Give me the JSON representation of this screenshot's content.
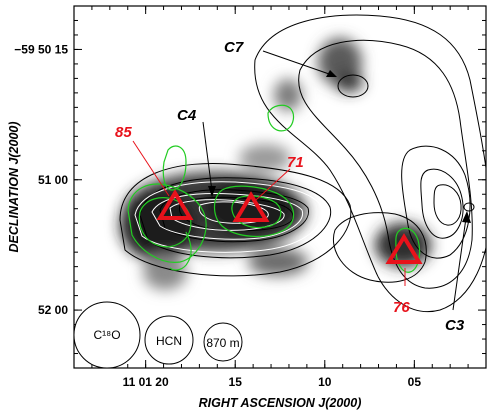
{
  "chart_data": {
    "type": "contour",
    "xlabel": "RIGHT ASCENSION J(2000)",
    "ylabel": "DECLINATION J(2000)",
    "x_ticks": [
      {
        "value": 20,
        "label": "11 01 20"
      },
      {
        "value": 15,
        "label": "15"
      },
      {
        "value": 10,
        "label": "10"
      },
      {
        "value": 5,
        "label": "05"
      }
    ],
    "y_ticks": [
      {
        "value": 15,
        "label": "−59 50 15"
      },
      {
        "value": 60,
        "label": "51 00"
      },
      {
        "value": 105,
        "label": "52 00"
      }
    ],
    "ra_seconds_range": [
      24,
      1
    ],
    "dec_arcsec_below_59_50_range": [
      0,
      125
    ],
    "clumps": [
      {
        "label": "C7",
        "ra_s": 7.8,
        "dec_arcsec": 40
      },
      {
        "label": "C4",
        "ra_s": 14.5,
        "dec_arcsec": 74
      },
      {
        "label": "C3",
        "ra_s": 2.7,
        "dec_arcsec": 78
      }
    ],
    "sources": [
      {
        "label": "85",
        "ra_s": 17.3,
        "dec_arcsec": 77,
        "color": "#e8121b"
      },
      {
        "label": "71",
        "ra_s": 13.3,
        "dec_arcsec": 78,
        "color": "#e8121b"
      },
      {
        "label": "76",
        "ra_s": 5.5,
        "dec_arcsec": 89,
        "color": "#e8121b"
      }
    ],
    "beams": [
      {
        "label": "C¹⁸O"
      },
      {
        "label": "HCN"
      },
      {
        "label": "870 m"
      }
    ],
    "layers": [
      {
        "name": "870 m dust emission",
        "style": "grayscale image"
      },
      {
        "name": "C¹⁸O",
        "style": "black contours",
        "color": "#000000"
      },
      {
        "name": "HCN",
        "style": "white contours",
        "color": "#ffffff"
      },
      {
        "name": "green contours",
        "style": "green contours",
        "color": "#22cc22"
      }
    ]
  }
}
